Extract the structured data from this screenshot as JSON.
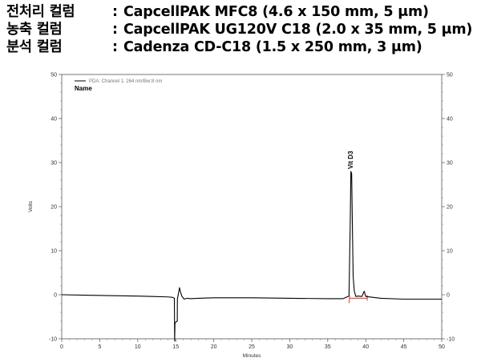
{
  "header": {
    "lines": [
      {
        "label": "전처리 컬럼",
        "sep": ":",
        "value": "CapcellPAK MFC8 (4.6 x 150 mm, 5 μm)"
      },
      {
        "label": "농축 컬럼",
        "sep": ":",
        "value": "CapcellPAK UG120V C18 (2.0 x 35 mm, 5 μm)"
      },
      {
        "label": "분석 컬럼",
        "sep": ":",
        "value": "Cadenza CD-C18 (1.5 x 250 mm, 3 μm)"
      }
    ]
  },
  "chart_data": {
    "type": "line",
    "title": "",
    "xlabel": "Minutes",
    "ylabel": "Volts",
    "xlim": [
      0,
      50
    ],
    "ylim": [
      -10,
      50
    ],
    "x_ticks": [
      0,
      5,
      10,
      15,
      20,
      25,
      30,
      35,
      40,
      45,
      50
    ],
    "y_ticks": [
      -10,
      0,
      10,
      20,
      30,
      40,
      50
    ],
    "legend": {
      "entry": "PDA: Channel 1, 264 nm/Bw:8 nm",
      "placement": "top-left",
      "line_color": "#000000"
    },
    "name_label": "Name",
    "series": [
      {
        "name": "PDA: Channel 1, 264 nm/Bw:8 nm",
        "color": "#000000",
        "x": [
          0,
          3,
          6,
          10,
          12,
          14,
          14.6,
          14.82,
          14.86,
          14.9,
          15.0,
          15.2,
          15.22,
          15.5,
          15.6,
          15.8,
          16.1,
          16.5,
          17,
          18,
          20,
          25,
          30,
          35,
          37,
          37.8,
          37.95,
          38.05,
          38.15,
          38.25,
          38.35,
          38.5,
          38.7,
          39,
          39.5,
          39.8,
          40,
          42,
          45,
          48,
          50
        ],
        "y": [
          0,
          -0.1,
          -0.2,
          -0.3,
          -0.4,
          -0.5,
          -0.6,
          -0.8,
          -10.5,
          -6.5,
          -6.2,
          -6.0,
          -1.0,
          1.6,
          0.8,
          -0.3,
          -1.0,
          -0.8,
          -0.9,
          -0.8,
          -0.7,
          -0.7,
          -0.8,
          -0.9,
          -0.9,
          -0.3,
          15,
          28,
          27.5,
          15,
          4,
          0.8,
          -0.4,
          -0.3,
          -0.4,
          0.8,
          -0.4,
          -0.8,
          -1.0,
          -1.0,
          -1.0
        ]
      }
    ],
    "annotations": [
      {
        "text": "Vit D3",
        "x": 38.05,
        "y": 28
      }
    ],
    "baseline_marker": {
      "color": "#e0352b",
      "x_start": 37.9,
      "x_end": 40.2,
      "y": -0.8
    }
  }
}
